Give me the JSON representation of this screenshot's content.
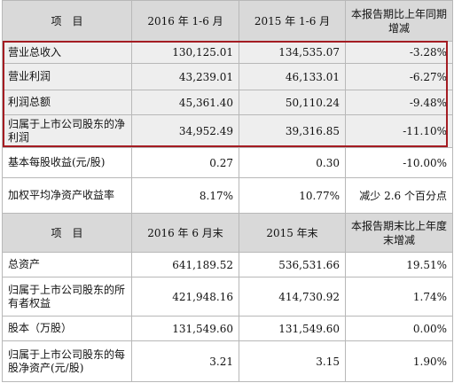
{
  "header1": {
    "item": "项　目",
    "col_2016": "2016 年 1-6 月",
    "col_2015": "2015 年 1-6 月",
    "col_change": "本报告期比上年同期增减"
  },
  "rows1": [
    {
      "label": "营业总收入",
      "v2016": "130,125.01",
      "v2015": "134,535.07",
      "change": "-3.28%"
    },
    {
      "label": "营业利润",
      "v2016": "43,239.01",
      "v2015": "46,133.01",
      "change": "-6.27%"
    },
    {
      "label": "利润总额",
      "v2016": "45,361.40",
      "v2015": "50,110.24",
      "change": "-9.48%"
    },
    {
      "label": "归属于上市公司股东的净利润",
      "v2016": "34,952.49",
      "v2015": "39,316.85",
      "change": "-11.10%"
    },
    {
      "label": "基本每股收益(元/股)",
      "v2016": "0.27",
      "v2015": "0.30",
      "change": "-10.00%"
    },
    {
      "label": "加权平均净资产收益率",
      "v2016": "8.17%",
      "v2015": "10.77%",
      "change": "减少 2.6 个百分点"
    }
  ],
  "header2": {
    "item": "项　目",
    "col_2016": "2016 年 6 月末",
    "col_2015": "2015 年末",
    "col_change": "本报告期末比上年度末增减"
  },
  "rows2": [
    {
      "label": "总资产",
      "v2016": "641,189.52",
      "v2015": "536,531.66",
      "change": "19.51%"
    },
    {
      "label": "归属于上市公司股东的所有者权益",
      "v2016": "421,948.16",
      "v2015": "414,730.92",
      "change": "1.74%"
    },
    {
      "label": "股本（万股）",
      "v2016": "131,549.60",
      "v2015": "131,549.60",
      "change": "0.00%"
    },
    {
      "label": "归属于上市公司股东的每股净资产(元/股)",
      "v2016": "3.21",
      "v2015": "3.15",
      "change": "1.90%"
    }
  ]
}
